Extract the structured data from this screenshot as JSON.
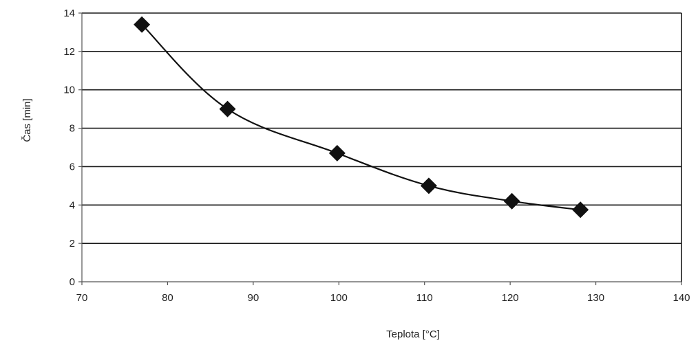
{
  "chart_data": {
    "type": "line",
    "title": "",
    "xlabel": "Teplota [°C]",
    "ylabel": "Čas [min]",
    "xlim": [
      70,
      140
    ],
    "ylim": [
      0,
      14
    ],
    "x_ticks": [
      70,
      80,
      90,
      100,
      110,
      120,
      130,
      140
    ],
    "y_ticks": [
      0,
      2,
      4,
      6,
      8,
      10,
      12,
      14
    ],
    "grid": "horizontal",
    "legend": "none",
    "series": [
      {
        "marker": "diamond",
        "color": "#111111",
        "points": [
          {
            "x": 77,
            "y": 13.4
          },
          {
            "x": 87,
            "y": 9.0
          },
          {
            "x": 99.8,
            "y": 6.7
          },
          {
            "x": 110.5,
            "y": 5.0
          },
          {
            "x": 120.2,
            "y": 4.2
          },
          {
            "x": 128.2,
            "y": 3.75
          }
        ]
      }
    ]
  }
}
